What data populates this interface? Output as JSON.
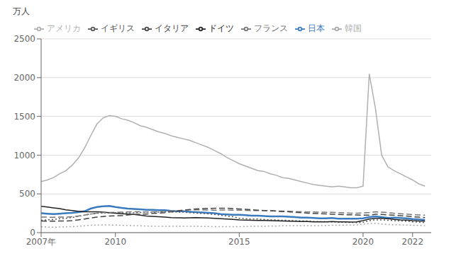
{
  "chart_data": {
    "type": "line",
    "y_label": "万人",
    "legend": "upper left",
    "grid": true,
    "xlim": [
      2007,
      2022.75
    ],
    "xticks": [
      {
        "value": 2007,
        "label": "2007年"
      },
      2010,
      2015,
      2020,
      2022
    ],
    "ylim": [
      0,
      2500
    ],
    "yticks": [
      0,
      500,
      1000,
      1500,
      2000,
      2500
    ],
    "x": [
      2007.0,
      2007.25,
      2007.5,
      2007.75,
      2008.0,
      2008.25,
      2008.5,
      2008.75,
      2009.0,
      2009.25,
      2009.5,
      2009.75,
      2010.0,
      2010.25,
      2010.5,
      2010.75,
      2011.0,
      2011.25,
      2011.5,
      2011.75,
      2012.0,
      2012.25,
      2012.5,
      2012.75,
      2013.0,
      2013.25,
      2013.5,
      2013.75,
      2014.0,
      2014.25,
      2014.5,
      2014.75,
      2015.0,
      2015.25,
      2015.5,
      2015.75,
      2016.0,
      2016.25,
      2016.5,
      2016.75,
      2017.0,
      2017.25,
      2017.5,
      2017.75,
      2018.0,
      2018.25,
      2018.5,
      2018.75,
      2019.0,
      2019.25,
      2019.5,
      2019.75,
      2020.0,
      2020.25,
      2020.5,
      2020.75,
      2021.0,
      2021.25,
      2021.5,
      2021.75,
      2022.0,
      2022.25,
      2022.5
    ],
    "series": [
      {
        "name": "日本",
        "color": "#3a7abf",
        "line_style": "solid",
        "values": [
          250,
          245,
          240,
          245,
          250,
          255,
          265,
          275,
          310,
          330,
          340,
          345,
          330,
          320,
          310,
          305,
          300,
          295,
          295,
          290,
          290,
          280,
          275,
          275,
          270,
          265,
          260,
          255,
          250,
          240,
          235,
          230,
          230,
          225,
          220,
          220,
          215,
          210,
          210,
          210,
          205,
          200,
          195,
          195,
          190,
          185,
          185,
          190,
          180,
          180,
          180,
          180,
          185,
          200,
          210,
          200,
          190,
          195,
          190,
          185,
          175,
          170,
          165
        ]
      },
      {
        "name": "アメリカ",
        "color": "#b0b0b0",
        "line_style": "solid",
        "values": [
          660,
          680,
          710,
          760,
          800,
          870,
          960,
          1090,
          1250,
          1400,
          1480,
          1510,
          1500,
          1470,
          1450,
          1420,
          1380,
          1360,
          1330,
          1300,
          1280,
          1250,
          1230,
          1210,
          1190,
          1160,
          1130,
          1100,
          1060,
          1020,
          970,
          930,
          890,
          860,
          830,
          800,
          790,
          760,
          740,
          710,
          700,
          680,
          660,
          640,
          620,
          610,
          600,
          590,
          600,
          590,
          580,
          580,
          600,
          2050,
          1600,
          1000,
          850,
          800,
          760,
          720,
          680,
          630,
          600
        ]
      },
      {
        "name": "イギリス",
        "color": "#555555",
        "line_style": "dotted",
        "values": [
          160,
          165,
          170,
          180,
          185,
          195,
          210,
          225,
          240,
          250,
          255,
          255,
          255,
          255,
          255,
          255,
          260,
          265,
          265,
          265,
          270,
          268,
          265,
          265,
          258,
          252,
          248,
          243,
          235,
          225,
          215,
          205,
          185,
          180,
          175,
          175,
          170,
          165,
          163,
          160,
          158,
          155,
          152,
          150,
          145,
          143,
          140,
          140,
          135,
          133,
          132,
          130,
          132,
          155,
          165,
          165,
          160,
          155,
          152,
          148,
          140,
          135,
          130
        ]
      },
      {
        "name": "ドイツ",
        "color": "#222222",
        "line_style": "solid",
        "values": [
          340,
          330,
          320,
          310,
          295,
          285,
          275,
          270,
          270,
          270,
          265,
          258,
          250,
          245,
          240,
          235,
          225,
          215,
          210,
          205,
          200,
          195,
          192,
          190,
          192,
          193,
          192,
          190,
          185,
          180,
          175,
          170,
          165,
          162,
          160,
          158,
          158,
          155,
          152,
          150,
          148,
          145,
          143,
          143,
          140,
          140,
          140,
          143,
          140,
          140,
          138,
          140,
          155,
          175,
          185,
          185,
          180,
          170,
          165,
          162,
          155,
          150,
          148
        ]
      },
      {
        "name": "フランス",
        "color": "#777777",
        "line_style": "dashed",
        "values": [
          200,
          200,
          198,
          200,
          200,
          205,
          215,
          225,
          240,
          252,
          258,
          260,
          262,
          265,
          268,
          270,
          268,
          268,
          270,
          272,
          275,
          280,
          285,
          290,
          295,
          295,
          295,
          293,
          290,
          292,
          292,
          290,
          290,
          288,
          285,
          285,
          285,
          285,
          280,
          278,
          275,
          272,
          270,
          268,
          268,
          265,
          262,
          262,
          258,
          255,
          252,
          250,
          255,
          260,
          270,
          265,
          258,
          250,
          245,
          240,
          232,
          228,
          225
        ]
      },
      {
        "name": "イタリア",
        "color": "#444444",
        "line_style": "dashed",
        "values": [
          150,
          148,
          148,
          150,
          150,
          155,
          165,
          175,
          190,
          200,
          208,
          215,
          218,
          220,
          228,
          235,
          238,
          240,
          248,
          252,
          258,
          268,
          278,
          290,
          298,
          305,
          310,
          312,
          315,
          315,
          315,
          310,
          305,
          300,
          295,
          290,
          285,
          282,
          278,
          272,
          270,
          262,
          258,
          252,
          248,
          245,
          242,
          238,
          235,
          232,
          230,
          228,
          225,
          225,
          238,
          235,
          230,
          225,
          220,
          215,
          205,
          200,
          195
        ]
      },
      {
        "name": "韓国",
        "color": "#aaaaaa",
        "line_style": "dotted",
        "values": [
          75,
          72,
          70,
          72,
          75,
          78,
          82,
          88,
          95,
          98,
          100,
          100,
          98,
          95,
          92,
          90,
          88,
          85,
          83,
          82,
          82,
          82,
          82,
          82,
          82,
          82,
          80,
          80,
          78,
          78,
          78,
          78,
          78,
          80,
          82,
          82,
          82,
          85,
          85,
          88,
          88,
          88,
          88,
          88,
          88,
          90,
          92,
          95,
          95,
          98,
          98,
          100,
          108,
          118,
          118,
          112,
          105,
          103,
          100,
          98,
          95,
          93,
          90
        ]
      }
    ]
  }
}
